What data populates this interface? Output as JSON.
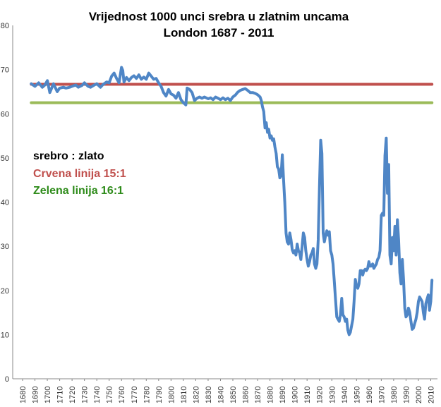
{
  "chart_data": {
    "type": "line",
    "title_lines": [
      "Vrijednost 1000 unci srebra u zlatnim uncama",
      "London 1687 - 2011"
    ],
    "xlabel": "",
    "ylabel": "",
    "xlim": [
      1680,
      2012
    ],
    "ylim": [
      0,
      80
    ],
    "x_ticks": [
      1680,
      1690,
      1700,
      1710,
      1720,
      1730,
      1740,
      1750,
      1760,
      1770,
      1780,
      1790,
      1800,
      1810,
      1820,
      1830,
      1840,
      1850,
      1860,
      1870,
      1880,
      1890,
      1900,
      1910,
      1920,
      1930,
      1940,
      1950,
      1960,
      1970,
      1980,
      1990,
      2000,
      2010
    ],
    "y_ticks": [
      0,
      10,
      20,
      30,
      40,
      50,
      60,
      70,
      80
    ],
    "grid": false,
    "legend_items": [
      {
        "text": "srebro : zlato",
        "color": "#000000"
      },
      {
        "text": "Crvena linija 15:1",
        "color": "#c0504d"
      },
      {
        "text": "Zelena linija 16:1",
        "color": "#2e8b1a"
      }
    ],
    "series": [
      {
        "color": "#4f86c6",
        "x": [
          1687,
          1690,
          1693,
          1696,
          1698,
          1700,
          1702,
          1705,
          1708,
          1710,
          1713,
          1715,
          1718,
          1720,
          1723,
          1725,
          1728,
          1730,
          1733,
          1735,
          1738,
          1740,
          1743,
          1745,
          1748,
          1750,
          1752,
          1754,
          1756,
          1758,
          1760,
          1761,
          1762,
          1764,
          1766,
          1768,
          1770,
          1772,
          1774,
          1776,
          1778,
          1780,
          1782,
          1784,
          1786,
          1788,
          1790,
          1792,
          1794,
          1796,
          1798,
          1800,
          1802,
          1804,
          1806,
          1808,
          1810,
          1812,
          1813,
          1815,
          1817,
          1819,
          1821,
          1823,
          1825,
          1827,
          1830,
          1832,
          1834,
          1836,
          1838,
          1840,
          1842,
          1844,
          1846,
          1848,
          1850,
          1852,
          1854,
          1856,
          1858,
          1860,
          1862,
          1864,
          1866,
          1868,
          1870,
          1872,
          1873,
          1874,
          1875,
          1876,
          1877,
          1878,
          1879,
          1880,
          1881,
          1882,
          1883,
          1884,
          1885,
          1886,
          1887,
          1888,
          1889,
          1890,
          1891,
          1892,
          1893,
          1894,
          1895,
          1896,
          1897,
          1898,
          1899,
          1900,
          1901,
          1902,
          1903,
          1904,
          1905,
          1906,
          1907,
          1908,
          1909,
          1910,
          1911,
          1912,
          1913,
          1914,
          1915,
          1916,
          1917,
          1918,
          1919,
          1920,
          1921,
          1922,
          1923,
          1924,
          1925,
          1926,
          1927,
          1928,
          1929,
          1930,
          1931,
          1932,
          1933,
          1934,
          1935,
          1936,
          1937,
          1938,
          1939,
          1940,
          1941,
          1942,
          1943,
          1944,
          1945,
          1946,
          1947,
          1948,
          1949,
          1950,
          1951,
          1952,
          1953,
          1954,
          1955,
          1956,
          1957,
          1958,
          1959,
          1960,
          1961,
          1962,
          1963,
          1964,
          1965,
          1966,
          1967,
          1968,
          1969,
          1970,
          1971,
          1972,
          1973,
          1974,
          1975,
          1976,
          1977,
          1978,
          1979,
          1980,
          1981,
          1982,
          1983,
          1984,
          1985,
          1986,
          1987,
          1988,
          1989,
          1990,
          1991,
          1992,
          1993,
          1994,
          1995,
          1996,
          1997,
          1998,
          1999,
          2000,
          2001,
          2002,
          2003,
          2004,
          2005,
          2006,
          2007,
          2008,
          2009,
          2010,
          2011
        ],
        "values": [
          66.8,
          66.2,
          67.0,
          66.0,
          66.5,
          67.5,
          64.8,
          66.8,
          65.0,
          65.8,
          66.0,
          65.8,
          66.0,
          66.2,
          66.5,
          66.0,
          66.4,
          67.0,
          66.2,
          66.0,
          66.5,
          66.8,
          66.0,
          66.6,
          67.2,
          67.0,
          68.5,
          69.2,
          68.0,
          67.0,
          70.5,
          69.8,
          67.2,
          68.2,
          67.5,
          68.2,
          68.6,
          68.0,
          68.8,
          67.8,
          68.3,
          67.8,
          69.2,
          68.5,
          67.8,
          68.0,
          67.0,
          66.2,
          64.8,
          64.0,
          65.5,
          64.5,
          64.2,
          63.5,
          64.8,
          63.2,
          62.5,
          62.0,
          65.8,
          65.5,
          64.8,
          63.0,
          63.5,
          63.8,
          63.5,
          63.8,
          63.4,
          63.6,
          63.2,
          63.8,
          63.5,
          63.2,
          63.6,
          63.2,
          63.5,
          63.0,
          63.8,
          64.2,
          64.9,
          65.3,
          65.5,
          65.7,
          65.3,
          64.8,
          64.8,
          64.6,
          64.3,
          63.8,
          63.0,
          61.5,
          60.5,
          56.8,
          58.0,
          55.8,
          56.5,
          54.5,
          55.0,
          54.0,
          54.3,
          52.5,
          51.0,
          48.0,
          47.5,
          45.5,
          46.0,
          50.7,
          45.0,
          40.0,
          33.0,
          31.0,
          30.5,
          33.0,
          31.5,
          29.2,
          28.5,
          29.0,
          28.0,
          30.5,
          29.0,
          28.5,
          27.0,
          30.0,
          33.0,
          32.0,
          29.0,
          27.0,
          25.5,
          26.5,
          28.0,
          28.5,
          29.5,
          26.0,
          25.0,
          26.0,
          31.5,
          43.0,
          54.0,
          51.0,
          33.0,
          31.0,
          32.5,
          33.5,
          32.5,
          33.3,
          29.0,
          28.0,
          26.0,
          22.0,
          18.0,
          14.0,
          13.5,
          13.0,
          14.5,
          18.2,
          14.5,
          14.0,
          13.0,
          13.5,
          11.0,
          10.0,
          10.5,
          12.0,
          13.5,
          17.5,
          22.5,
          21.0,
          20.5,
          21.5,
          24.5,
          24.5,
          23.5,
          24.5,
          24.8,
          24.5,
          25.0,
          26.5,
          25.5,
          25.5,
          26.0,
          25.0,
          25.5,
          26.0,
          27.0,
          27.5,
          29.0,
          37.0,
          37.5,
          37.0,
          50.5,
          54.5,
          42.0,
          48.5,
          28.0,
          26.0,
          32.0,
          29.0,
          34.5,
          28.0,
          36.0,
          31.5,
          24.0,
          21.5,
          27.0,
          22.5,
          16.0,
          14.0,
          14.5,
          16.0,
          15.0,
          13.0,
          11.2,
          11.5,
          12.5,
          13.5,
          15.0,
          17.5,
          18.5,
          18.0,
          17.5,
          15.0,
          13.5,
          17.0,
          18.0,
          19.0,
          15.5,
          17.5,
          22.3
        ]
      },
      {
        "color": "#c0504d",
        "x": [
          1687,
          2011
        ],
        "values": [
          66.67,
          66.67
        ]
      },
      {
        "color": "#9bbb59",
        "x": [
          1687,
          2011
        ],
        "values": [
          62.5,
          62.5
        ]
      }
    ]
  }
}
